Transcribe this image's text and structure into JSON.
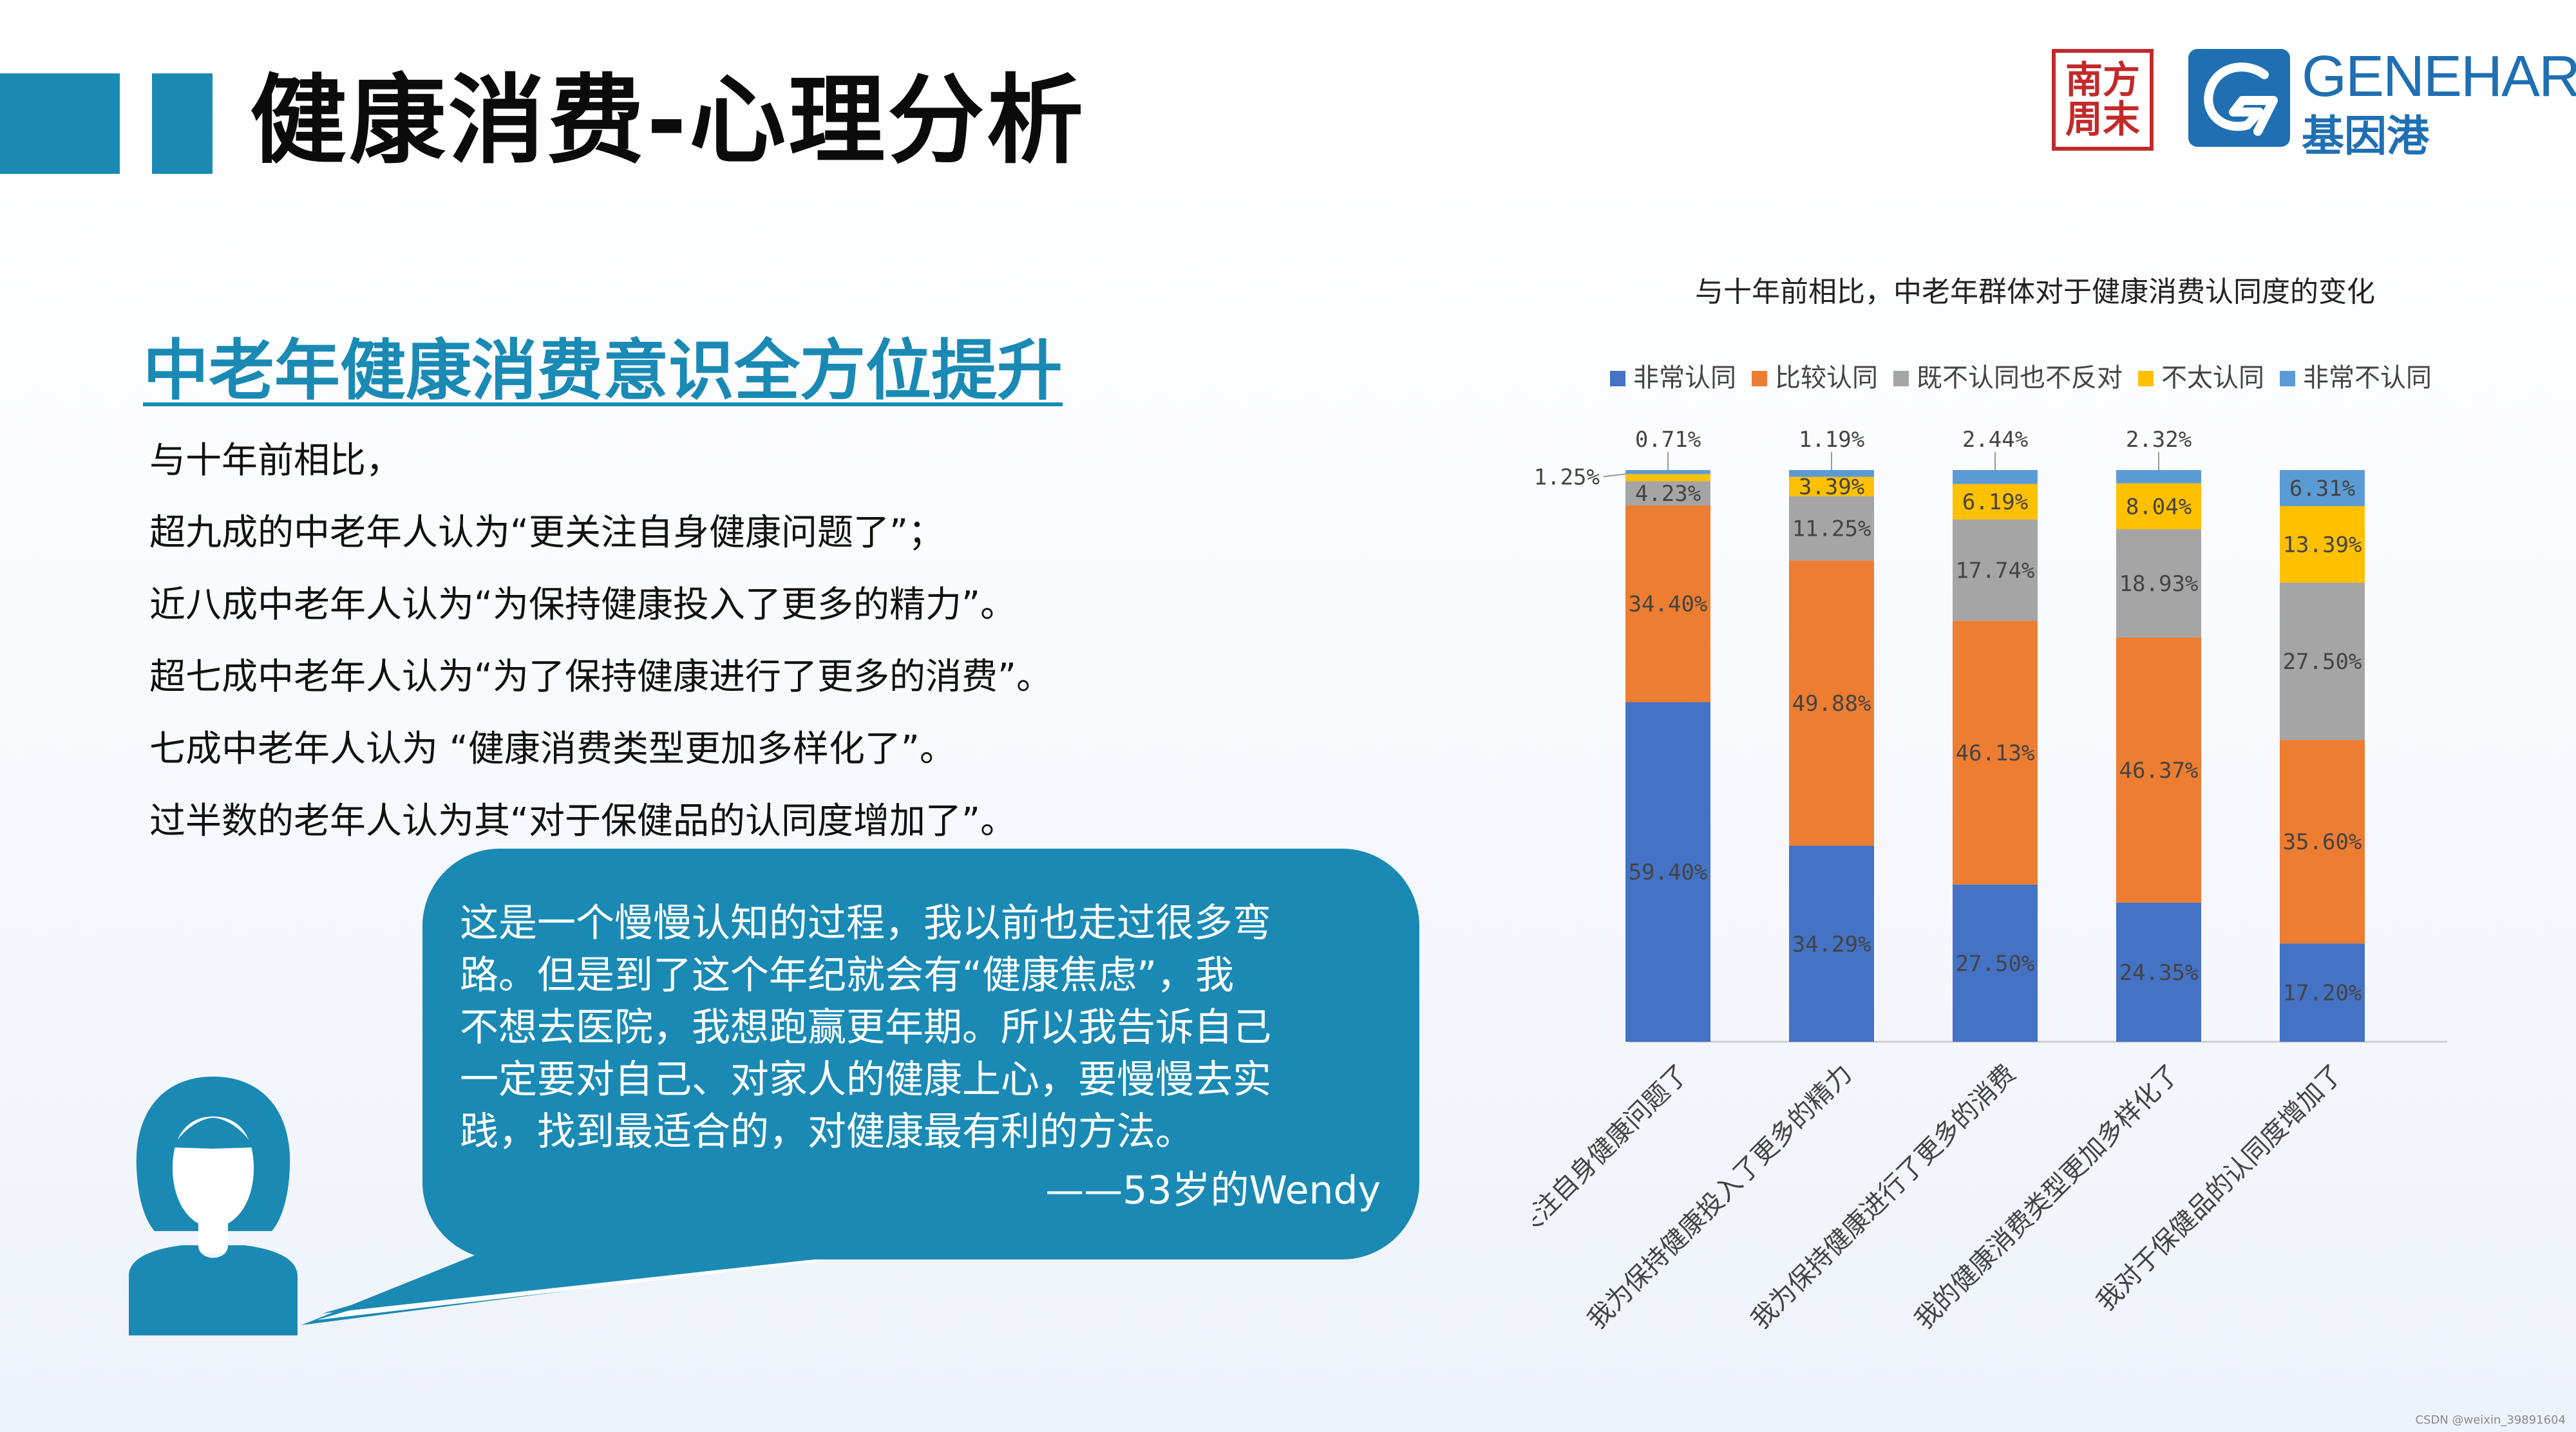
{
  "header": {
    "title": "健康消费-心理分析"
  },
  "logos": {
    "seal_text": "南方周末",
    "brand_name": "GENEHARBOR",
    "brand_cn": "基因港"
  },
  "left": {
    "heading": "中老年健康消费意识全方位提升",
    "lines": [
      "与十年前相比，",
      "超九成的中老年人认为“更关注自身健康问题了”；",
      "近八成中老年人认为“为保持健康投入了更多的精力”。",
      "超七成中老年人认为“为了保持健康进行了更多的消费”。",
      "七成中老年人认为 “健康消费类型更加多样化了”。",
      "过半数的老年人认为其“对于保健品的认同度增加了”。"
    ]
  },
  "quote": {
    "lines": [
      "这是一个慢慢认知的过程，我以前也走过很多弯",
      "路。但是到了这个年纪就会有“健康焦虑”，我",
      "不想去医院，我想跑赢更年期。所以我告诉自己",
      "一定要对自己、对家人的健康上心，要慢慢去实",
      "践，找到最适合的，对健康最有利的方法。"
    ],
    "attribution": "——53岁的Wendy"
  },
  "colors": {
    "accent": "#1a8ab4",
    "series": [
      "#4472c4",
      "#ed7d31",
      "#a5a5a5",
      "#ffc000",
      "#5b9bd5"
    ]
  },
  "chart_data": {
    "type": "bar",
    "stacked": true,
    "title": "与十年前相比，中老年群体对于健康消费认同度的变化",
    "categories": [
      "我更关注自身健康问题了",
      "我为保持健康投入了更多的精力",
      "我为保持健康进行了更多的消费",
      "我的健康消费类型更加多样化了",
      "我对于保健品的认同度增加了"
    ],
    "series": [
      {
        "name": "非常认同",
        "values": [
          59.4,
          34.29,
          27.5,
          24.35,
          17.2
        ],
        "labels": [
          "59.40%",
          "34.29%",
          "27.50%",
          "24.35%",
          "17.20%"
        ]
      },
      {
        "name": "比较认同",
        "values": [
          34.4,
          49.88,
          46.13,
          46.37,
          35.6
        ],
        "labels": [
          "34.40%",
          "49.88%",
          "46.13%",
          "46.37%",
          "35.60%"
        ]
      },
      {
        "name": "既不认同也不反对",
        "values": [
          4.23,
          11.25,
          17.74,
          18.93,
          27.5
        ],
        "labels": [
          "4.23%",
          "11.25%",
          "17.74%",
          "18.93%",
          "27.50%"
        ]
      },
      {
        "name": "不太认同",
        "values": [
          1.25,
          3.39,
          6.19,
          8.04,
          13.39
        ],
        "labels": [
          "1.25%",
          "3.39%",
          "6.19%",
          "8.04%",
          "13.39%"
        ]
      },
      {
        "name": "非常不认同",
        "values": [
          0.71,
          1.19,
          2.44,
          2.32,
          6.31
        ],
        "labels": [
          "0.71%",
          "1.19%",
          "2.44%",
          "2.32%",
          "6.31%"
        ]
      }
    ],
    "ylim": [
      0,
      100
    ],
    "legend": "top",
    "grid": false
  },
  "watermark": "CSDN @weixin_39891604"
}
